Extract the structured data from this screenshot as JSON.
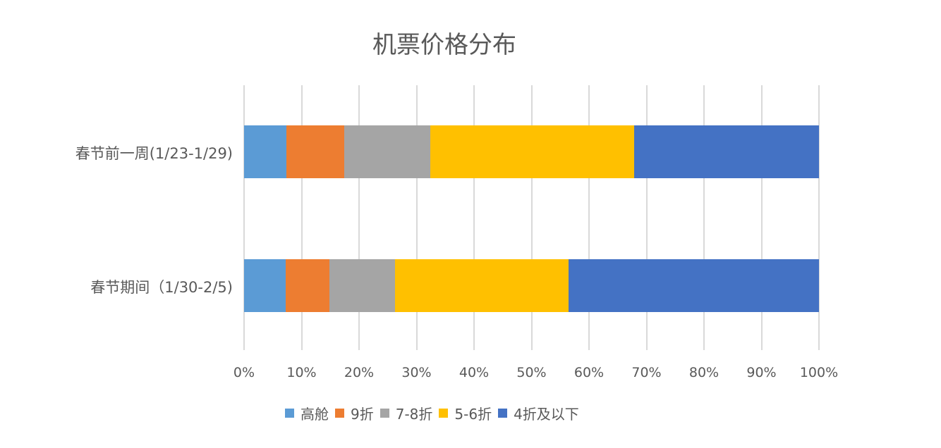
{
  "chart_data": {
    "type": "bar",
    "orientation": "horizontal",
    "stacked": "percent",
    "title": "机票价格分布",
    "xlabel": "",
    "ylabel": "",
    "xlim": [
      0,
      100
    ],
    "grid": true,
    "legend_position": "bottom",
    "categories": [
      "春节前一周(1/23-1/29)",
      "春节期间（1/30-2/5)"
    ],
    "x_ticks": [
      "0%",
      "10%",
      "20%",
      "30%",
      "40%",
      "50%",
      "60%",
      "70%",
      "80%",
      "90%",
      "100%"
    ],
    "series": [
      {
        "name": "高舱",
        "color": "#5b9bd5",
        "values": [
          7.4,
          7.2
        ]
      },
      {
        "name": "9折",
        "color": "#ed7d31",
        "values": [
          10.0,
          7.7
        ]
      },
      {
        "name": "7-8折",
        "color": "#a5a5a5",
        "values": [
          15.0,
          11.3
        ]
      },
      {
        "name": "5-6折",
        "color": "#ffc000",
        "values": [
          35.5,
          30.2
        ]
      },
      {
        "name": "4折及以下",
        "color": "#4472c4",
        "values": [
          32.1,
          43.6
        ]
      }
    ]
  }
}
